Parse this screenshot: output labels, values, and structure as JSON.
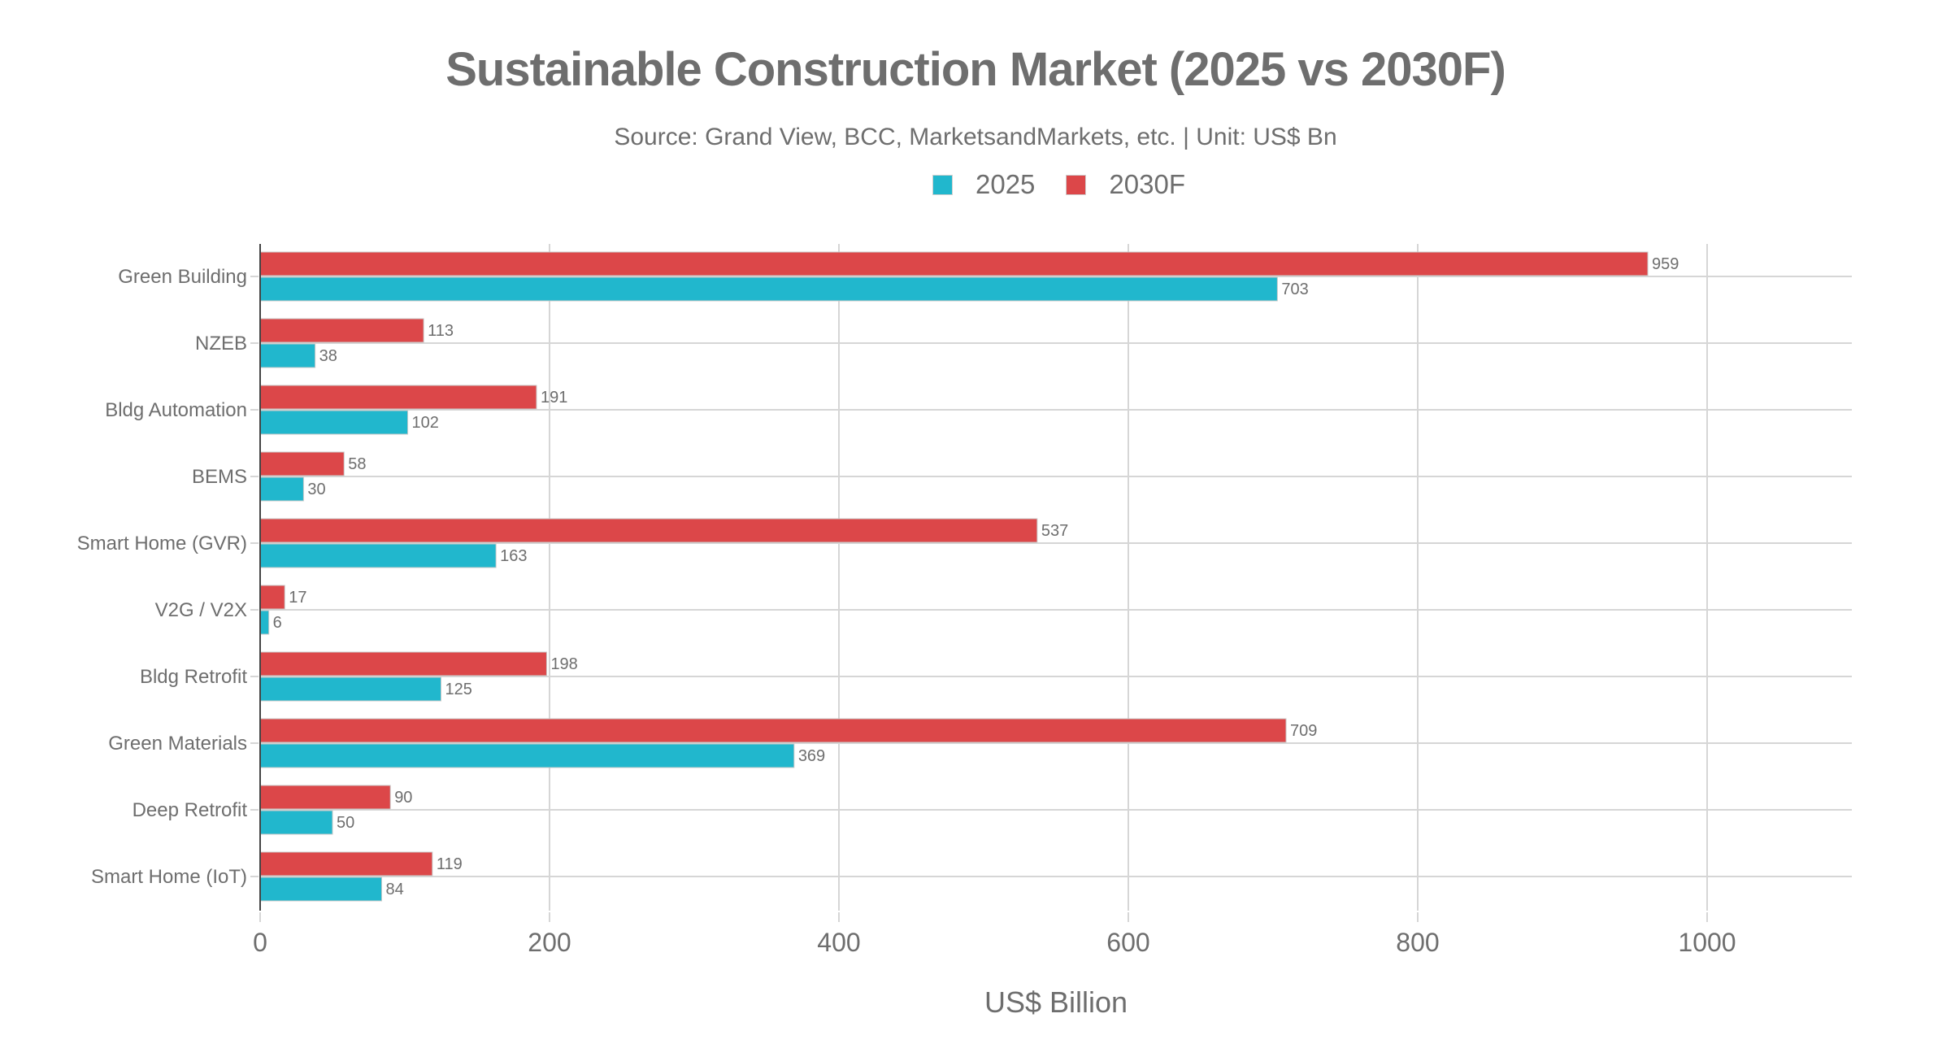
{
  "chart_data": {
    "type": "bar",
    "orientation": "horizontal",
    "title": "Sustainable Construction Market (2025 vs 2030F)",
    "subtitle": "Source: Grand View, BCC, MarketsandMarkets, etc. | Unit: US$ Bn",
    "xlabel": "US$ Billion",
    "ylabel": "",
    "xlim": [
      0,
      1100
    ],
    "xticks": [
      0,
      200,
      400,
      600,
      800,
      1000
    ],
    "xtick_labels": [
      "0",
      "200",
      "400",
      "600",
      "800",
      "1000"
    ],
    "grid": true,
    "legend_position": "top-center",
    "categories": [
      "Green Building",
      "NZEB",
      "Bldg Automation",
      "BEMS",
      "Smart Home (GVR)",
      "V2G / V2X",
      "Bldg Retrofit",
      "Green Materials",
      "Deep Retrofit",
      "Smart Home (IoT)"
    ],
    "series": [
      {
        "name": "2025",
        "color": "#21b7cd",
        "values": [
          703,
          38,
          102,
          30,
          163,
          6,
          125,
          369,
          50,
          84
        ]
      },
      {
        "name": "2030F",
        "color": "#dc4749",
        "values": [
          959,
          113,
          191,
          58,
          537,
          17,
          198,
          709,
          90,
          119
        ]
      }
    ],
    "data_labels": true
  }
}
